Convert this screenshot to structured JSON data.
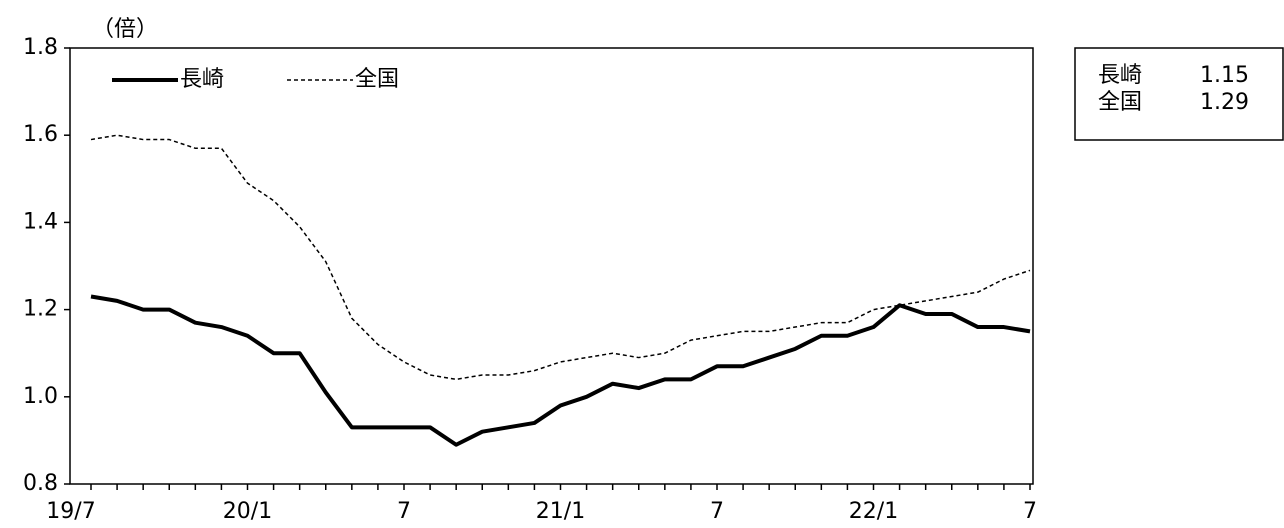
{
  "chart_data": {
    "type": "line",
    "unit_label": "（倍）",
    "categories": [
      "19/7",
      null,
      null,
      null,
      null,
      null,
      "20/1",
      null,
      null,
      null,
      null,
      null,
      "7",
      null,
      null,
      null,
      null,
      null,
      "21/1",
      null,
      null,
      null,
      null,
      null,
      "7",
      null,
      null,
      null,
      null,
      null,
      "22/1",
      null,
      null,
      null,
      null,
      null,
      "7"
    ],
    "series": [
      {
        "name": "長崎",
        "color": "#000000",
        "dash": false,
        "values": [
          1.23,
          1.22,
          1.2,
          1.2,
          1.17,
          1.16,
          1.14,
          1.1,
          1.1,
          1.01,
          0.93,
          0.93,
          0.93,
          0.93,
          0.89,
          0.92,
          0.93,
          0.94,
          0.98,
          1.0,
          1.03,
          1.02,
          1.04,
          1.04,
          1.07,
          1.07,
          1.09,
          1.11,
          1.14,
          1.14,
          1.16,
          1.21,
          1.19,
          1.19,
          1.16,
          1.16,
          1.15
        ]
      },
      {
        "name": "全国",
        "color": "#000000",
        "dash": true,
        "values": [
          1.59,
          1.6,
          1.59,
          1.59,
          1.57,
          1.57,
          1.49,
          1.45,
          1.39,
          1.31,
          1.18,
          1.12,
          1.08,
          1.05,
          1.04,
          1.05,
          1.05,
          1.06,
          1.08,
          1.09,
          1.1,
          1.09,
          1.1,
          1.13,
          1.14,
          1.15,
          1.15,
          1.16,
          1.17,
          1.17,
          1.2,
          1.21,
          1.22,
          1.23,
          1.24,
          1.27,
          1.29
        ]
      }
    ],
    "latest_labels": [
      "1.15",
      "1.29"
    ],
    "ylim": [
      0.8,
      1.8
    ],
    "yticks": [
      0.8,
      {
        "value": 1.0,
        "label": "1.0"
      },
      1.2,
      1.4,
      1.6,
      1.8
    ],
    "grid": false,
    "legend": "top-left"
  }
}
